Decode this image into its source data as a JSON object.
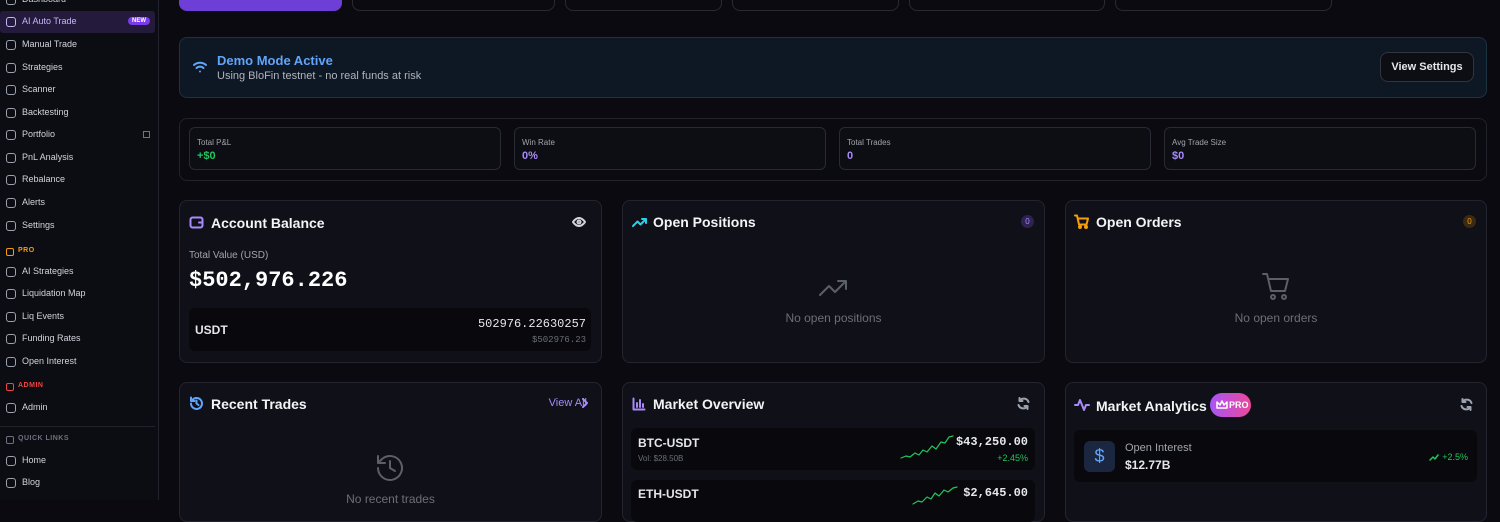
{
  "sidebar": {
    "sections": [
      {
        "items": [
          {
            "label": "Dashboard"
          },
          {
            "label": "AI Auto Trade",
            "badge": "NEW"
          },
          {
            "label": "Manual Trade"
          },
          {
            "label": "Strategies"
          },
          {
            "label": "Scanner"
          },
          {
            "label": "Backtesting"
          },
          {
            "label": "Portfolio"
          },
          {
            "label": "PnL Analysis"
          },
          {
            "label": "Rebalance"
          },
          {
            "label": "Alerts"
          },
          {
            "label": "Settings"
          }
        ]
      },
      {
        "heading": "PRO",
        "items": [
          {
            "label": "AI Strategies"
          },
          {
            "label": "Liquidation Map"
          },
          {
            "label": "Liq Events"
          },
          {
            "label": "Funding Rates"
          },
          {
            "label": "Open Interest"
          }
        ]
      },
      {
        "heading": "ADMIN",
        "items": [
          {
            "label": "Admin"
          }
        ]
      },
      {
        "heading": "QUICK LINKS",
        "items": [
          {
            "label": "Home"
          },
          {
            "label": "Blog"
          }
        ]
      }
    ]
  },
  "banner": {
    "title": "Demo Mode Active",
    "text": "Using BloFin testnet - no real funds at risk",
    "button": "View Settings"
  },
  "stats": [
    {
      "label": "Total P&L",
      "value": "+$0"
    },
    {
      "label": "Win Rate",
      "value": "0%"
    },
    {
      "label": "Total Trades",
      "value": "0"
    },
    {
      "label": "Avg Trade Size",
      "value": "$0"
    }
  ],
  "account": {
    "title": "Account Balance",
    "total_label": "Total Value (USD)",
    "total": "$502,976.226",
    "assets": [
      {
        "symbol": "USDT",
        "amount": "502976.22630257",
        "usd": "$502976.23"
      }
    ]
  },
  "positions": {
    "title": "Open Positions",
    "count": "0",
    "empty": "No open positions"
  },
  "orders": {
    "title": "Open Orders",
    "count": "0",
    "empty": "No open orders"
  },
  "recent_trades": {
    "title": "Recent Trades",
    "link": "View All",
    "empty": "No recent trades"
  },
  "market_overview": {
    "title": "Market Overview",
    "rows": [
      {
        "pair": "BTC-USDT",
        "volume": "Vol: $28.50B",
        "price": "$43,250.00",
        "change": "+2.45%"
      },
      {
        "pair": "ETH-USDT",
        "price": "$2,645.00"
      }
    ]
  },
  "analytics": {
    "title": "Market Analytics",
    "badge": "PRO",
    "rows": [
      {
        "label": "Open Interest",
        "value": "$12.77B",
        "change": "+2.5%"
      }
    ]
  }
}
